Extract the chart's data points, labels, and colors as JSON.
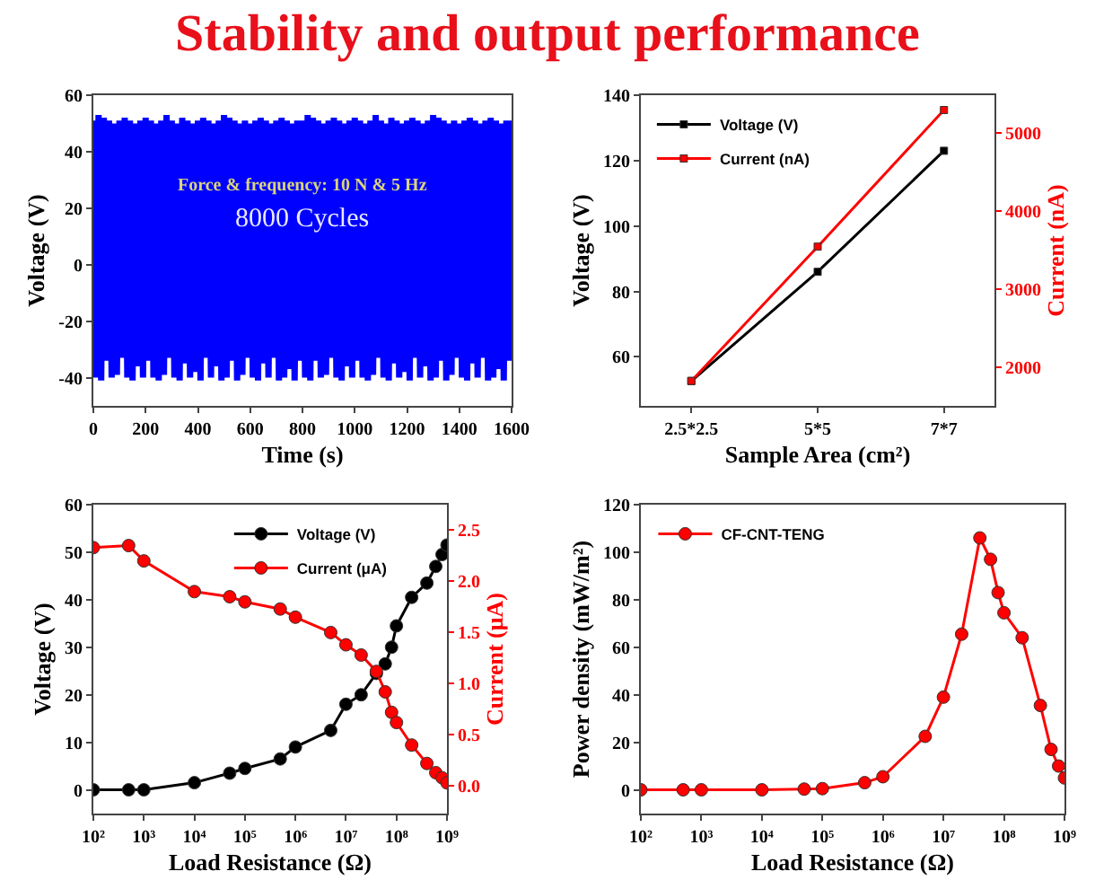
{
  "chart_data": [
    {
      "type": "other",
      "title": "Stability and output performance"
    },
    {
      "type": "line",
      "xlabel": "Time (s)",
      "ylabel": "Voltage (V)",
      "annotations": [
        "Force & frequency: 10 N & 5 Hz",
        "8000 Cycles"
      ],
      "x": [
        0,
        10,
        20,
        30,
        40,
        50,
        60,
        70,
        80,
        90,
        100,
        110,
        120,
        130,
        140,
        150,
        160,
        170,
        180,
        190,
        200,
        210,
        220,
        230,
        240,
        250,
        260,
        270,
        280,
        290,
        300,
        310,
        320,
        330,
        340,
        350,
        360,
        370,
        380,
        390,
        400,
        410,
        420,
        430,
        440,
        450,
        460,
        470,
        480,
        490,
        500,
        510,
        520,
        530,
        540,
        550,
        560,
        570,
        580,
        590,
        600,
        610,
        620,
        630,
        640,
        650,
        660,
        670,
        680,
        690,
        700,
        710,
        720,
        730,
        740,
        750,
        760,
        770,
        780,
        790,
        800,
        810,
        820,
        830,
        840,
        850,
        860,
        870,
        880,
        890,
        900,
        910,
        920,
        930,
        940,
        950,
        960,
        970,
        980,
        990,
        1000,
        1010,
        1020,
        1030,
        1040,
        1050,
        1060,
        1070,
        1080,
        1090,
        1100,
        1110,
        1120,
        1130,
        1140,
        1150,
        1160,
        1170,
        1180,
        1190,
        1200,
        1210,
        1220,
        1230,
        1240,
        1250,
        1260,
        1270,
        1280,
        1290,
        1300,
        1310,
        1320,
        1330,
        1340,
        1350,
        1360,
        1370,
        1380,
        1390,
        1400,
        1410,
        1420,
        1430,
        1440,
        1450,
        1460,
        1470,
        1480,
        1490,
        1500,
        1510,
        1520,
        1530,
        1540,
        1550,
        1560,
        1570,
        1580,
        1590,
        1600
      ],
      "series": [
        {
          "color": "#0000ff",
          "values": [
            51,
            -40,
            53,
            -41,
            52,
            -34,
            51,
            -40,
            50,
            -39,
            51,
            -33,
            52,
            -40,
            51,
            -41,
            50,
            -36,
            51,
            -40,
            52,
            -34,
            51,
            -40,
            50,
            -41,
            51,
            -39,
            53,
            -33,
            51,
            -40,
            50,
            -41,
            52,
            -35,
            51,
            -40,
            50,
            -38,
            51,
            -41,
            52,
            -33,
            51,
            -40,
            50,
            -36,
            51,
            -41,
            53,
            -40,
            52,
            -34,
            51,
            -41,
            50,
            -39,
            51,
            -33,
            50,
            -40,
            51,
            -41,
            52,
            -35,
            51,
            -40,
            50,
            -33,
            51,
            -41,
            52,
            -40,
            51,
            -37,
            50,
            -41,
            51,
            -34,
            51,
            -40,
            53,
            -41,
            52,
            -34,
            51,
            -40,
            50,
            -39,
            51,
            -33,
            52,
            -40,
            51,
            -41,
            50,
            -36,
            51,
            -40,
            52,
            -34,
            51,
            -40,
            50,
            -41,
            51,
            -39,
            53,
            -33,
            51,
            -40,
            50,
            -41,
            52,
            -35,
            51,
            -40,
            50,
            -38,
            51,
            -41,
            52,
            -33,
            51,
            -40,
            50,
            -36,
            51,
            -41,
            53,
            -40,
            52,
            -34,
            51,
            -41,
            50,
            -39,
            51,
            -33,
            50,
            -40,
            51,
            -41,
            52,
            -35,
            51,
            -40,
            50,
            -33,
            51,
            -41,
            52,
            -40,
            51,
            -37,
            50,
            -41,
            51,
            -34,
            51
          ]
        }
      ],
      "xlim": [
        0,
        1600
      ],
      "xticks": [
        0,
        200,
        400,
        600,
        800,
        1000,
        1200,
        1400,
        1600
      ],
      "ylim": [
        -50,
        60
      ],
      "yticks": [
        -40,
        -20,
        0,
        20,
        40,
        60
      ],
      "grid": false,
      "legend": false
    },
    {
      "type": "line",
      "xlabel": "Sample Area (cm²)",
      "ylabel": "Voltage (V)",
      "y2label": "Current (nA)",
      "categories": [
        "2.5*2.5",
        "5*5",
        "7*7"
      ],
      "series": [
        {
          "name": "Voltage (V)",
          "color": "#000000",
          "values": [
            52.6,
            86,
            123
          ]
        },
        {
          "name": "Current (nA)",
          "color": "#ff0000",
          "values": [
            1820,
            3540,
            5290
          ],
          "axis": "y2"
        }
      ],
      "ylim": [
        45,
        140
      ],
      "yticks": [
        60,
        80,
        100,
        120,
        140
      ],
      "y2lim": [
        1500,
        5480
      ],
      "y2ticks": [
        2000,
        3000,
        4000,
        5000
      ],
      "marker": "square",
      "grid": false,
      "legend": "top left"
    },
    {
      "type": "line",
      "xlabel": "Load Resistance (Ω)",
      "ylabel": "Voltage (V)",
      "y2label": "Current (μA)",
      "log": "x",
      "x": [
        100,
        500,
        1000,
        10000,
        50000,
        100000,
        500000,
        1000000,
        5000000,
        10000000,
        20000000,
        40000000,
        60000000,
        80000000,
        100000000,
        200000000,
        400000000,
        600000000,
        800000000,
        1000000000
      ],
      "series": [
        {
          "name": "Voltage (V)",
          "color": "#000000",
          "values": [
            0,
            0,
            0,
            1.5,
            3.5,
            4.5,
            6.5,
            9,
            12.5,
            18,
            20,
            24.5,
            26.5,
            30,
            34.5,
            40.5,
            43.5,
            47,
            49.5,
            51.5
          ]
        },
        {
          "name": "Current (μA)",
          "color": "#ff0000",
          "axis": "y2",
          "values": [
            2.33,
            2.35,
            2.2,
            1.9,
            1.85,
            1.8,
            1.73,
            1.65,
            1.5,
            1.38,
            1.28,
            1.12,
            0.92,
            0.72,
            0.62,
            0.4,
            0.22,
            0.13,
            0.08,
            0.03
          ]
        }
      ],
      "xlim": [
        100,
        1000000000
      ],
      "xticks": [
        {
          "value": 100,
          "label": "10²"
        },
        {
          "value": 1000,
          "label": "10³"
        },
        {
          "value": 10000,
          "label": "10⁴"
        },
        {
          "value": 100000,
          "label": "10⁵"
        },
        {
          "value": 1000000,
          "label": "10⁶"
        },
        {
          "value": 10000000,
          "label": "10⁷"
        },
        {
          "value": 100000000,
          "label": "10⁸"
        },
        {
          "value": 1000000000,
          "label": "10⁹"
        }
      ],
      "ylim": [
        -5,
        60
      ],
      "yticks": [
        0,
        10,
        20,
        30,
        40,
        50,
        60
      ],
      "y2lim": [
        -0.27,
        2.75
      ],
      "y2ticks": [
        {
          "value": 0,
          "label": "0.0"
        },
        0.5,
        {
          "value": 1,
          "label": "1.0"
        },
        1.5,
        {
          "value": 2,
          "label": "2.0"
        },
        2.5
      ],
      "marker": "circle",
      "grid": false,
      "legend": "top right"
    },
    {
      "type": "line",
      "xlabel": "Load Resistance (Ω)",
      "ylabel": "Power density (mW/m²)",
      "log": "x",
      "x": [
        100,
        500,
        1000,
        10000,
        50000,
        100000,
        500000,
        1000000,
        5000000,
        10000000,
        20000000,
        40000000,
        60000000,
        80000000,
        100000000,
        200000000,
        400000000,
        600000000,
        800000000,
        1000000000
      ],
      "series": [
        {
          "name": "CF-CNT-TENG",
          "color": "#ff0000",
          "values": [
            0,
            0,
            0,
            0,
            0.3,
            0.5,
            3,
            5.5,
            22.5,
            39,
            65.5,
            106,
            97,
            83,
            74.5,
            64,
            35.5,
            17,
            10,
            5
          ]
        }
      ],
      "xlim": [
        100,
        1000000000
      ],
      "xticks": [
        {
          "value": 100,
          "label": "10²"
        },
        {
          "value": 1000,
          "label": "10³"
        },
        {
          "value": 10000,
          "label": "10⁴"
        },
        {
          "value": 100000,
          "label": "10⁵"
        },
        {
          "value": 1000000,
          "label": "10⁶"
        },
        {
          "value": 10000000,
          "label": "10⁷"
        },
        {
          "value": 100000000,
          "label": "10⁸"
        },
        {
          "value": 1000000000,
          "label": "10⁹"
        }
      ],
      "ylim": [
        -10,
        120
      ],
      "yticks": [
        0,
        20,
        40,
        60,
        80,
        100,
        120
      ],
      "marker": "circle",
      "grid": false,
      "legend": "top left"
    }
  ]
}
